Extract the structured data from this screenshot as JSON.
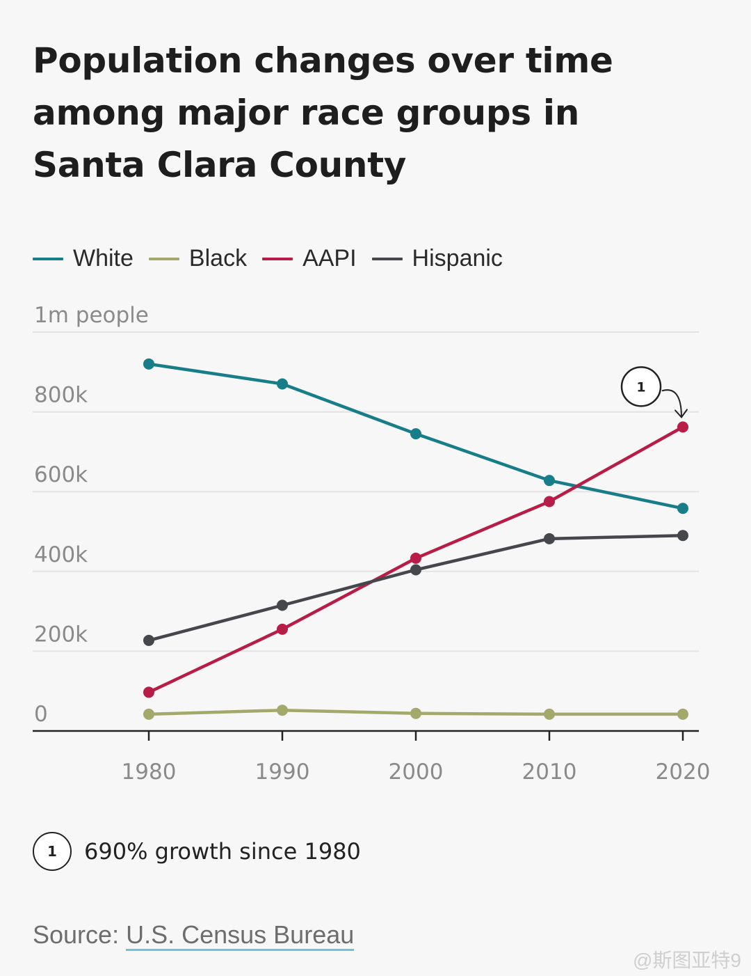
{
  "title": "Population changes over time among major race groups in Santa Clara County",
  "legend": [
    {
      "name": "White",
      "color": "#177e89"
    },
    {
      "name": "Black",
      "color": "#a3a86b"
    },
    {
      "name": "AAPI",
      "color": "#b81d48"
    },
    {
      "name": "Hispanic",
      "color": "#45474d"
    }
  ],
  "annotation": {
    "badge": "1",
    "text": "690% growth since 1980"
  },
  "source": {
    "label": "Source:",
    "link_text": "U.S. Census Bureau"
  },
  "watermark": "@斯图亚特9",
  "chart_data": {
    "type": "line",
    "x": [
      1980,
      1990,
      2000,
      2010,
      2020
    ],
    "xticks": [
      "1980",
      "1990",
      "2000",
      "2010",
      "2020"
    ],
    "ylim": [
      0,
      1000000
    ],
    "yticks": [
      {
        "value": 0,
        "label": "0"
      },
      {
        "value": 200000,
        "label": "200k"
      },
      {
        "value": 400000,
        "label": "400k"
      },
      {
        "value": 600000,
        "label": "600k"
      },
      {
        "value": 800000,
        "label": "800k"
      },
      {
        "value": 1000000,
        "label": "1m people"
      }
    ],
    "series": [
      {
        "name": "White",
        "color": "#177e89",
        "values": [
          920000,
          870000,
          745000,
          628000,
          558000
        ]
      },
      {
        "name": "Black",
        "color": "#a3a86b",
        "values": [
          42000,
          52000,
          44000,
          42000,
          42000
        ]
      },
      {
        "name": "AAPI",
        "color": "#b81d48",
        "values": [
          97000,
          255000,
          433000,
          575000,
          762000
        ]
      },
      {
        "name": "Hispanic",
        "color": "#45474d",
        "values": [
          227000,
          315000,
          404000,
          482000,
          490000
        ]
      }
    ],
    "grid": true,
    "legend_position": "top-left",
    "callout": {
      "series": "AAPI",
      "x": 2020,
      "badge": "1"
    }
  }
}
